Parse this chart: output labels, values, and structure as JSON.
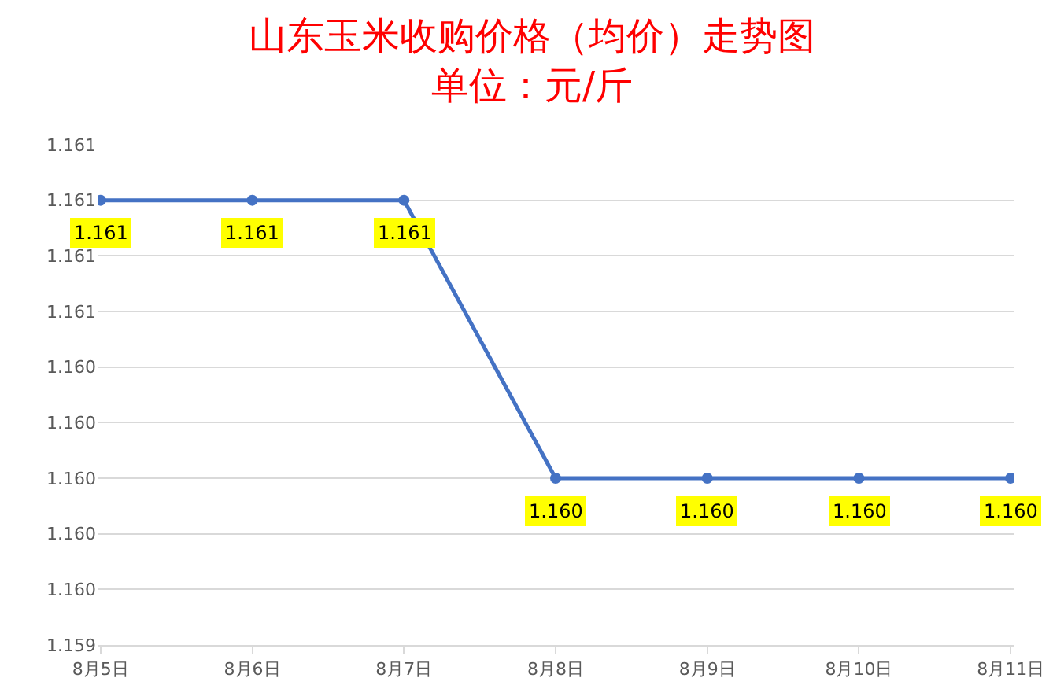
{
  "chart_data": {
    "type": "line",
    "title": "山东玉米收购价格（均价）走势图",
    "subtitle": "单位：元/斤",
    "categories": [
      "8月5日",
      "8月6日",
      "8月7日",
      "8月8日",
      "8月9日",
      "8月10日",
      "8月11日"
    ],
    "series": [
      {
        "color": "#4472c4",
        "values": [
          1.161,
          1.161,
          1.161,
          1.16,
          1.16,
          1.16,
          1.16
        ],
        "value_labels": [
          "1.161",
          "1.161",
          "1.161",
          "1.160",
          "1.160",
          "1.160",
          "1.160"
        ]
      }
    ],
    "ylim": [
      1.1594,
      1.1612
    ],
    "yticks": [
      {
        "value": 1.1594,
        "label": "1.159"
      },
      {
        "value": 1.1596,
        "label": "1.160"
      },
      {
        "value": 1.1598,
        "label": "1.160"
      },
      {
        "value": 1.16,
        "label": "1.160"
      },
      {
        "value": 1.1602,
        "label": "1.160"
      },
      {
        "value": 1.1604,
        "label": "1.160"
      },
      {
        "value": 1.1606,
        "label": "1.161"
      },
      {
        "value": 1.1608,
        "label": "1.161"
      },
      {
        "value": 1.161,
        "label": "1.161"
      },
      {
        "value": 1.1612,
        "label": "1.161"
      }
    ],
    "grid": "y",
    "marker": "circle",
    "line_style": "solid"
  }
}
